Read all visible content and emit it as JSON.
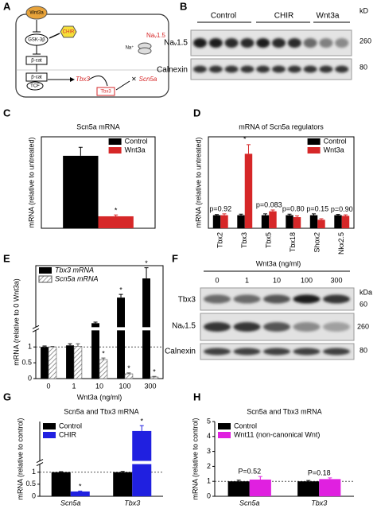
{
  "figure": {
    "panel_labels": [
      "A",
      "B",
      "C",
      "D",
      "E",
      "F",
      "G",
      "H"
    ]
  },
  "diagram": {
    "wnt": "Wnt3a",
    "gsk": "GSK-3β",
    "chir": "CHIR",
    "bcat1": "β-cat",
    "bcat2": "β-cat",
    "tcf": "TCF",
    "tbx3_gene": "Tbx3",
    "tbx3_protein": "Tbx3",
    "scn5a": "Scn5a",
    "na": "Na⁺",
    "nav": "Naᵥ1.5"
  },
  "blot_b": {
    "groups": [
      "Control",
      "CHIR",
      "Wnt3a"
    ],
    "rows": [
      "Naᵥ1.5",
      "Calnexin"
    ],
    "unit": "kD",
    "markers": [
      "260",
      "80"
    ]
  },
  "blot_f": {
    "header": "Wnt3a (ng/ml)",
    "lanes": [
      "0",
      "1",
      "10",
      "100",
      "300"
    ],
    "rows": [
      "Tbx3",
      "Naᵥ1.5",
      "Calnexin"
    ],
    "unit": "kDa",
    "markers": [
      "60",
      "260",
      "80"
    ]
  },
  "chart_data": [
    {
      "type": "bar",
      "title": "Scn5a mRNA",
      "y_label": "mRNA (relative to untreated)",
      "categories": [
        null
      ],
      "series": [
        {
          "name": "Control",
          "color": "#000000",
          "values": [
            1.03
          ],
          "errors": [
            0.12
          ]
        },
        {
          "name": "Wnt3a",
          "color": "#d62728",
          "values": [
            0.17
          ],
          "errors": [
            0.02
          ],
          "annotations": [
            "*"
          ]
        }
      ],
      "ylim": [
        0,
        1.3
      ],
      "legend": "top-right",
      "frame": true
    },
    {
      "type": "bar",
      "title": "mRNA of Scn5a regulators",
      "y_label": "mRNA (relative to untreated)",
      "categories": [
        "Tbx2",
        "Tbx3",
        "Tbx5",
        "Tbx18",
        "Shox2",
        "Nkx2.5"
      ],
      "rotate_categories": true,
      "series": [
        {
          "name": "Control",
          "color": "#000000",
          "values": [
            1,
            1,
            1,
            1,
            1,
            1
          ],
          "errors": [
            0.05,
            0.08,
            0.1,
            0.08,
            0.1,
            0.06
          ]
        },
        {
          "name": "Wnt3a",
          "color": "#d62728",
          "values": [
            1.0,
            5.7,
            1.3,
            0.85,
            0.65,
            0.95
          ],
          "errors": [
            0.1,
            0.7,
            0.1,
            0.1,
            0.08,
            0.08
          ]
        }
      ],
      "annotations": [
        "p=0.92",
        "*",
        "p=0.083",
        "p=0.80",
        "p=0.15",
        "p=0.90"
      ],
      "ylim": [
        0,
        7
      ],
      "legend": "top-right",
      "frame": true
    },
    {
      "type": "bar",
      "y_label": "mRNA (relative to 0 Wnt3a)",
      "x_label": "Wnt3a (ng/ml)",
      "categories": [
        "0",
        "1",
        "10",
        "100",
        "300"
      ],
      "series": [
        {
          "name": "Tbx3 mRNA",
          "color": "#000000",
          "values": [
            1,
            1.05,
            1.8,
            4.2,
            6.0
          ],
          "errors": [
            0.03,
            0.05,
            0.1,
            0.3,
            1.0
          ],
          "annotations": [
            null,
            null,
            null,
            "*",
            "*"
          ]
        },
        {
          "name": "Scn5a mRNA",
          "color": "#888888",
          "hatch": true,
          "values": [
            1,
            1.02,
            0.6,
            0.15,
            0.05
          ],
          "errors": [
            0.02,
            0.08,
            0.05,
            0.03,
            0.02
          ],
          "annotations": [
            null,
            null,
            "*",
            "*",
            "*"
          ]
        }
      ],
      "ylim": [
        0,
        7.2
      ],
      "ybreak": 1.5,
      "yticks": [
        0,
        0.5,
        1
      ],
      "refline": 1,
      "legend": "top-left",
      "frame": true
    },
    {
      "type": "bar",
      "title": "Scn5a and Tbx3 mRNA",
      "y_label": "mRNA (relative to control)",
      "categories": [
        "Scn5a",
        "Tbx3"
      ],
      "series": [
        {
          "name": "Control",
          "color": "#000000",
          "values": [
            1,
            1
          ],
          "errors": [
            0.02,
            0.03
          ]
        },
        {
          "name": "CHIR",
          "color": "#2020e0",
          "values": [
            0.2,
            5.6
          ],
          "errors": [
            0.02,
            0.8
          ],
          "annotations": [
            "*",
            "*"
          ]
        }
      ],
      "ylim": [
        0,
        7
      ],
      "ybreak": 1.3,
      "yticks": [
        0,
        0.5,
        1
      ],
      "refline": 1,
      "legend": "top-left",
      "frame": false
    },
    {
      "type": "bar",
      "title": "Scn5a and Tbx3 mRNA",
      "y_label": "mRNA (relative to control)",
      "categories": [
        "Scn5a",
        "Tbx3"
      ],
      "series": [
        {
          "name": "Control",
          "color": "#000000",
          "values": [
            1,
            1
          ],
          "errors": [
            0.08,
            0.06
          ]
        },
        {
          "name": "Wnt11 (non-canonical Wnt)",
          "color": "#e020e0",
          "values": [
            1.12,
            1.15
          ],
          "errors": [
            0.2,
            0.08
          ]
        }
      ],
      "annotations": [
        "P=0.52",
        "P=0.18"
      ],
      "ylim": [
        0,
        5
      ],
      "yticks": [
        0,
        1,
        2,
        3,
        4,
        5
      ],
      "refline": 1,
      "legend": "top-left",
      "frame": false
    }
  ]
}
